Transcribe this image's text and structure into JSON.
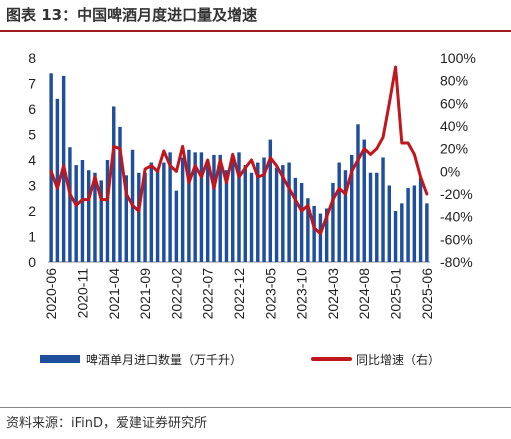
{
  "title": "图表 13：中国啤酒月度进口量及增速",
  "source": "资料来源：iFinD，爱建证券研究所",
  "chart_data": {
    "type": "bar+line",
    "legend_placement": "bottom",
    "grid": false,
    "x_tick_labels": [
      "2020-06",
      "2020-11",
      "2021-04",
      "2021-09",
      "2022-02",
      "2022-07",
      "2022-12",
      "2023-05",
      "2023-10",
      "2024-03",
      "2024-08",
      "2025-01",
      "2025-06"
    ],
    "y_left": {
      "ticks": [
        "0",
        "1",
        "2",
        "3",
        "4",
        "5",
        "6",
        "7",
        "8"
      ],
      "min": 0,
      "max": 8
    },
    "y_right": {
      "ticks": [
        "100%",
        "80%",
        "60%",
        "40%",
        "20%",
        "0%",
        "-20%",
        "-40%",
        "-60%",
        "-80%"
      ],
      "min": -80,
      "max": 100
    },
    "x_months": [
      "2020-06",
      "2020-07",
      "2020-08",
      "2020-09",
      "2020-10",
      "2020-11",
      "2020-12",
      "2021-01",
      "2021-02",
      "2021-03",
      "2021-04",
      "2021-05",
      "2021-06",
      "2021-07",
      "2021-08",
      "2021-09",
      "2021-10",
      "2021-11",
      "2021-12",
      "2022-01",
      "2022-02",
      "2022-03",
      "2022-04",
      "2022-05",
      "2022-06",
      "2022-07",
      "2022-08",
      "2022-09",
      "2022-10",
      "2022-11",
      "2022-12",
      "2023-01",
      "2023-02",
      "2023-03",
      "2023-04",
      "2023-05",
      "2023-06",
      "2023-07",
      "2023-08",
      "2023-09",
      "2023-10",
      "2023-11",
      "2023-12",
      "2024-01",
      "2024-02",
      "2024-03",
      "2024-04",
      "2024-05",
      "2024-06",
      "2024-07",
      "2024-08",
      "2024-09",
      "2024-10",
      "2024-11",
      "2024-12",
      "2025-01",
      "2025-02",
      "2025-03",
      "2025-04",
      "2025-05",
      "2025-06"
    ],
    "series": [
      {
        "name": "啤酒单月进口数量（万千升）",
        "type": "bar",
        "axis": "left",
        "color": "#1f4e9c",
        "values": [
          7.4,
          6.4,
          7.3,
          4.5,
          3.8,
          4.0,
          3.6,
          3.5,
          3.2,
          4.0,
          6.1,
          5.3,
          3.4,
          4.4,
          3.5,
          3.5,
          3.9,
          3.6,
          3.9,
          4.3,
          2.8,
          4.1,
          4.4,
          4.3,
          4.3,
          3.9,
          4.2,
          4.2,
          3.6,
          4.2,
          4.3,
          3.8,
          3.5,
          3.9,
          4.1,
          4.8,
          3.7,
          3.8,
          3.9,
          3.3,
          3.1,
          2.5,
          2.2,
          1.9,
          2.1,
          3.1,
          3.9,
          3.6,
          4.2,
          5.4,
          4.8,
          3.5,
          3.5,
          4.1,
          3.0,
          2.0,
          2.3,
          2.9,
          3.0,
          3.3,
          2.3
        ]
      },
      {
        "name": "同比增速（右）",
        "type": "line",
        "axis": "right",
        "color": "#c0161d",
        "values": [
          0,
          -15,
          5,
          -20,
          -30,
          -25,
          -25,
          -5,
          -25,
          -25,
          22,
          20,
          -20,
          -30,
          -35,
          2,
          5,
          0,
          18,
          5,
          0,
          22,
          -10,
          5,
          -5,
          10,
          -15,
          10,
          -10,
          15,
          -5,
          3,
          10,
          -5,
          -3,
          12,
          5,
          -5,
          -15,
          -25,
          -35,
          -30,
          -50,
          -55,
          -40,
          -25,
          -15,
          -20,
          0,
          10,
          20,
          15,
          20,
          30,
          60,
          92,
          25,
          25,
          15,
          -5,
          -20
        ]
      }
    ]
  }
}
